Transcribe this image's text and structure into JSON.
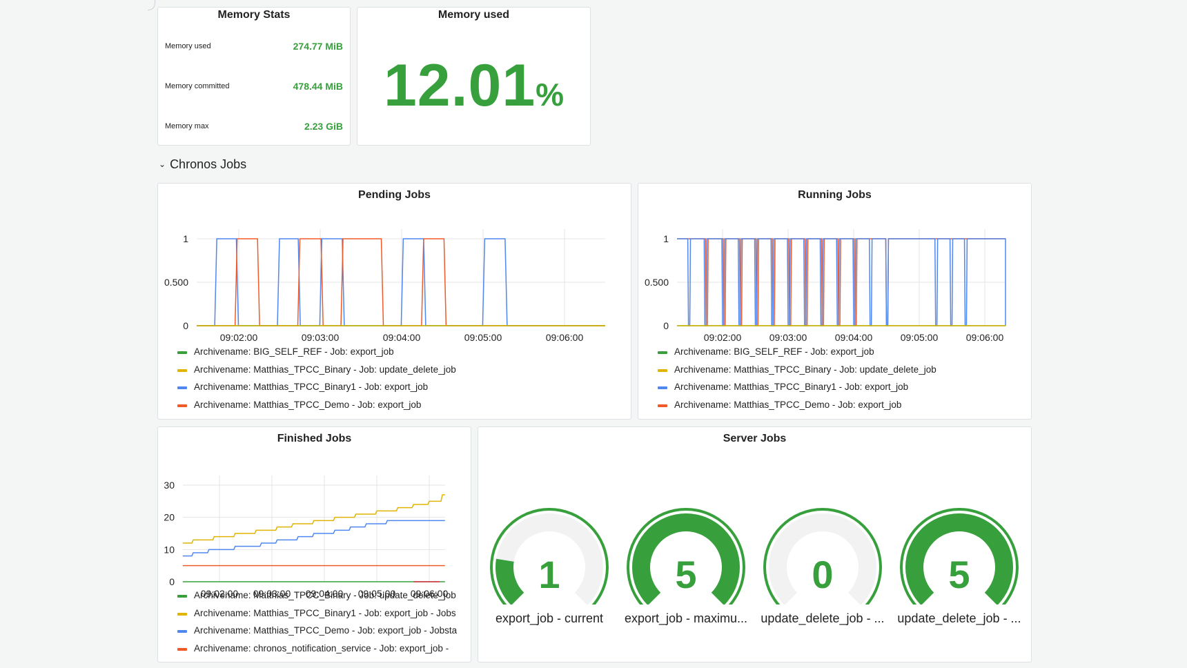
{
  "memory_stats": {
    "title": "Memory Stats",
    "rows": [
      {
        "label": "Memory used",
        "value": "274.77 MiB"
      },
      {
        "label": "Memory committed",
        "value": "478.44 MiB"
      },
      {
        "label": "Memory max",
        "value": "2.23 GiB"
      }
    ]
  },
  "memory_used": {
    "title": "Memory used",
    "value": "12.01",
    "unit": "%"
  },
  "row_header": {
    "chevron": "⌄",
    "title": "Chronos Jobs"
  },
  "colors": {
    "green": "#37a03c",
    "yellow": "#e0b400",
    "blue": "#4f86f0",
    "orange": "#f05a28",
    "red": "#e02f44",
    "gauge_bg": "#f2f2f2"
  },
  "pending_jobs": {
    "title": "Pending Jobs",
    "y_ticks": [
      "1",
      "0.500",
      "0"
    ],
    "x_ticks": [
      "09:02:00",
      "09:03:00",
      "09:04:00",
      "09:05:00",
      "09:06:00"
    ],
    "legend": [
      {
        "label": "Archivename: BIG_SELF_REF - Job: export_job",
        "color": "#37a03c"
      },
      {
        "label": "Archivename: Matthias_TPCC_Binary - Job: update_delete_job",
        "color": "#e0b400"
      },
      {
        "label": "Archivename: Matthias_TPCC_Binary1 - Job: export_job",
        "color": "#4f86f0"
      },
      {
        "label": "Archivename: Matthias_TPCC_Demo - Job: export_job",
        "color": "#f05a28"
      }
    ]
  },
  "running_jobs": {
    "title": "Running Jobs",
    "y_ticks": [
      "1",
      "0.500",
      "0"
    ],
    "x_ticks": [
      "09:02:00",
      "09:03:00",
      "09:04:00",
      "09:05:00",
      "09:06:00"
    ],
    "legend": [
      {
        "label": "Archivename: BIG_SELF_REF - Job: export_job",
        "color": "#37a03c"
      },
      {
        "label": "Archivename: Matthias_TPCC_Binary - Job: update_delete_job",
        "color": "#e0b400"
      },
      {
        "label": "Archivename: Matthias_TPCC_Binary1 - Job: export_job",
        "color": "#4f86f0"
      },
      {
        "label": "Archivename: Matthias_TPCC_Demo - Job: export_job",
        "color": "#f05a28"
      }
    ]
  },
  "finished_jobs": {
    "title": "Finished Jobs",
    "y_ticks": [
      "30",
      "20",
      "10",
      "0"
    ],
    "x_ticks": [
      "09:02:00",
      "09:03:00",
      "09:04:00",
      "09:05:00",
      "09:06:00"
    ],
    "legend": [
      {
        "label": "Archivename: Matthias_TPCC_Binary - Job: update_delete_job",
        "color": "#37a03c"
      },
      {
        "label": "Archivename: Matthias_TPCC_Binary1 - Job: export_job - Jobs",
        "color": "#e0b400"
      },
      {
        "label": "Archivename: Matthias_TPCC_Demo - Job: export_job - Jobsta",
        "color": "#4f86f0"
      },
      {
        "label": "Archivename: chronos_notification_service - Job: export_job -",
        "color": "#f05a28"
      }
    ]
  },
  "server_jobs": {
    "title": "Server Jobs",
    "gauges": [
      {
        "value": "1",
        "fraction": 0.2,
        "caption": "export_job - current"
      },
      {
        "value": "5",
        "fraction": 1.0,
        "caption": "export_job - maximu..."
      },
      {
        "value": "0",
        "fraction": 0.0,
        "caption": "update_delete_job - ..."
      },
      {
        "value": "5",
        "fraction": 1.0,
        "caption": "update_delete_job - ..."
      }
    ]
  },
  "chart_data": [
    {
      "type": "line",
      "title": "Pending Jobs",
      "x_ticks": [
        "09:02:00",
        "09:03:00",
        "09:04:00",
        "09:05:00",
        "09:06:00"
      ],
      "ylim": [
        0,
        1
      ],
      "series": [
        {
          "name": "Archivename: Matthias_TPCC_Binary1 - Job: export_job",
          "color": "#4f86f0",
          "high_intervals_min": [
            [
              -0.27,
              -0.03
            ],
            [
              0.5,
              0.73
            ],
            [
              1.02,
              1.27
            ],
            [
              2.02,
              2.27
            ],
            [
              3.02,
              3.27
            ]
          ]
        },
        {
          "name": "Archivename: Matthias_TPCC_Demo - Job: export_job",
          "color": "#f05a28",
          "high_intervals_min": [
            [
              -0.02,
              0.23
            ],
            [
              0.75,
              1.01
            ],
            [
              1.28,
              1.75
            ],
            [
              2.27,
              2.52
            ]
          ]
        },
        {
          "name": "Archivename: BIG_SELF_REF - Job: export_job",
          "color": "#37a03c",
          "high_intervals_min": []
        },
        {
          "name": "Archivename: Matthias_TPCC_Binary - Job: update_delete_job",
          "color": "#e0b400",
          "high_intervals_min": []
        }
      ]
    },
    {
      "type": "line",
      "title": "Running Jobs",
      "x_ticks": [
        "09:02:00",
        "09:03:00",
        "09:04:00",
        "09:05:00",
        "09:06:00"
      ],
      "ylim": [
        0,
        1
      ],
      "series": [
        {
          "name": "Archivename: Matthias_TPCC_Binary1 - Job: export_job",
          "color": "#4f86f0",
          "low_intervals_min": [
            [
              -0.52,
              -0.5
            ],
            [
              -0.27,
              -0.25
            ],
            [
              0.0,
              0.02
            ],
            [
              0.25,
              0.27
            ],
            [
              0.5,
              0.52
            ],
            [
              0.75,
              0.77
            ],
            [
              1.0,
              1.02
            ],
            [
              1.25,
              1.27
            ],
            [
              1.5,
              1.52
            ],
            [
              1.75,
              1.77
            ],
            [
              2.0,
              2.02
            ],
            [
              2.25,
              2.27
            ],
            [
              2.5,
              2.52
            ],
            [
              3.25,
              3.27
            ],
            [
              3.48,
              3.5
            ],
            [
              3.7,
              3.72
            ]
          ]
        },
        {
          "name": "Archivename: Matthias_TPCC_Demo - Job: export_job",
          "color": "#f05a28",
          "low_intervals_min": [
            [
              -0.25,
              -0.23
            ],
            [
              0.02,
              0.04
            ],
            [
              0.27,
              0.29
            ],
            [
              0.52,
              0.54
            ],
            [
              0.77,
              0.79
            ],
            [
              1.02,
              1.04
            ],
            [
              1.27,
              1.29
            ],
            [
              1.52,
              1.54
            ],
            [
              1.77,
              1.79
            ],
            [
              2.02,
              2.04
            ],
            [
              2.5,
              2.52
            ]
          ]
        },
        {
          "name": "Archivename: BIG_SELF_REF - Job: export_job",
          "color": "#37a03c",
          "low_intervals_min": []
        },
        {
          "name": "Archivename: Matthias_TPCC_Binary - Job: update_delete_job",
          "color": "#e0b400",
          "low_intervals_min": []
        }
      ]
    },
    {
      "type": "line",
      "title": "Finished Jobs",
      "x_ticks": [
        "09:02:00",
        "09:03:00",
        "09:04:00",
        "09:05:00",
        "09:06:00"
      ],
      "ylim": [
        0,
        30
      ],
      "x_range_min": [
        -0.7,
        4.3
      ],
      "series": [
        {
          "name": "Archivename: Matthias_TPCC_Binary - Job: update_delete_job",
          "color": "#37a03c",
          "points": [
            [
              -0.7,
              0
            ],
            [
              4.3,
              0
            ]
          ]
        },
        {
          "name": "Archivename: Matthias_TPCC_Binary1 - Job: export_job - Jobs",
          "color": "#e0b400",
          "points": [
            [
              -0.7,
              12
            ],
            [
              -0.5,
              13
            ],
            [
              -0.1,
              14
            ],
            [
              0.3,
              15
            ],
            [
              0.7,
              16
            ],
            [
              1.1,
              17
            ],
            [
              1.4,
              18
            ],
            [
              1.8,
              19
            ],
            [
              2.2,
              20
            ],
            [
              2.6,
              21
            ],
            [
              3.0,
              22
            ],
            [
              3.4,
              23
            ],
            [
              3.7,
              24
            ],
            [
              4.0,
              25
            ],
            [
              4.25,
              27
            ],
            [
              4.3,
              27
            ]
          ]
        },
        {
          "name": "Archivename: Matthias_TPCC_Demo - Job: export_job - Jobsta",
          "color": "#4f86f0",
          "points": [
            [
              -0.7,
              8
            ],
            [
              -0.5,
              9
            ],
            [
              -0.2,
              10
            ],
            [
              0.3,
              11
            ],
            [
              0.8,
              12
            ],
            [
              1.1,
              13
            ],
            [
              1.5,
              14
            ],
            [
              1.8,
              15
            ],
            [
              2.2,
              16
            ],
            [
              2.5,
              17
            ],
            [
              2.8,
              18
            ],
            [
              3.2,
              19
            ],
            [
              4.3,
              19
            ]
          ]
        },
        {
          "name": "Archivename: chronos_notification_service - Job: export_job -",
          "color": "#f05a28",
          "points": [
            [
              -0.7,
              5
            ],
            [
              4.3,
              5
            ]
          ]
        }
      ]
    },
    {
      "type": "gauge",
      "title": "Server Jobs",
      "range": [
        0,
        5
      ],
      "values": [
        {
          "label": "export_job - current",
          "value": 1
        },
        {
          "label": "export_job - maximu...",
          "value": 5
        },
        {
          "label": "update_delete_job - ...",
          "value": 0
        },
        {
          "label": "update_delete_job - ...",
          "value": 5
        }
      ]
    }
  ]
}
